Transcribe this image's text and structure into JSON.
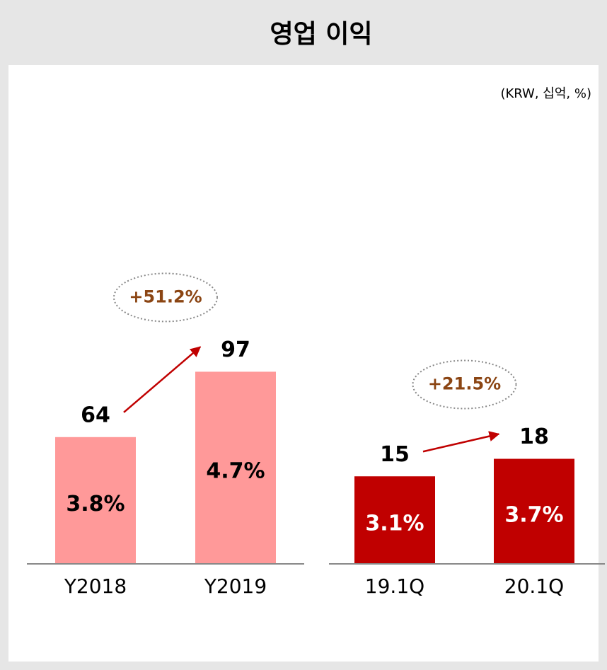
{
  "title": "영업 이익",
  "unit": "(KRW, 십억, %)",
  "chart_data": [
    {
      "type": "bar",
      "categories": [
        "Y2018",
        "Y2019"
      ],
      "values": [
        64,
        97
      ],
      "color": "#ff9999",
      "margin_labels": [
        "3.8%",
        "4.7%"
      ],
      "growth_label": "+51.2%",
      "ylim": [
        0,
        150
      ]
    },
    {
      "type": "bar",
      "categories": [
        "19.1Q",
        "20.1Q"
      ],
      "values": [
        15,
        18
      ],
      "color": "#c00000",
      "margin_labels": [
        "3.1%",
        "3.7%"
      ],
      "growth_label": "+21.5%",
      "ylim": [
        0,
        40
      ]
    }
  ]
}
